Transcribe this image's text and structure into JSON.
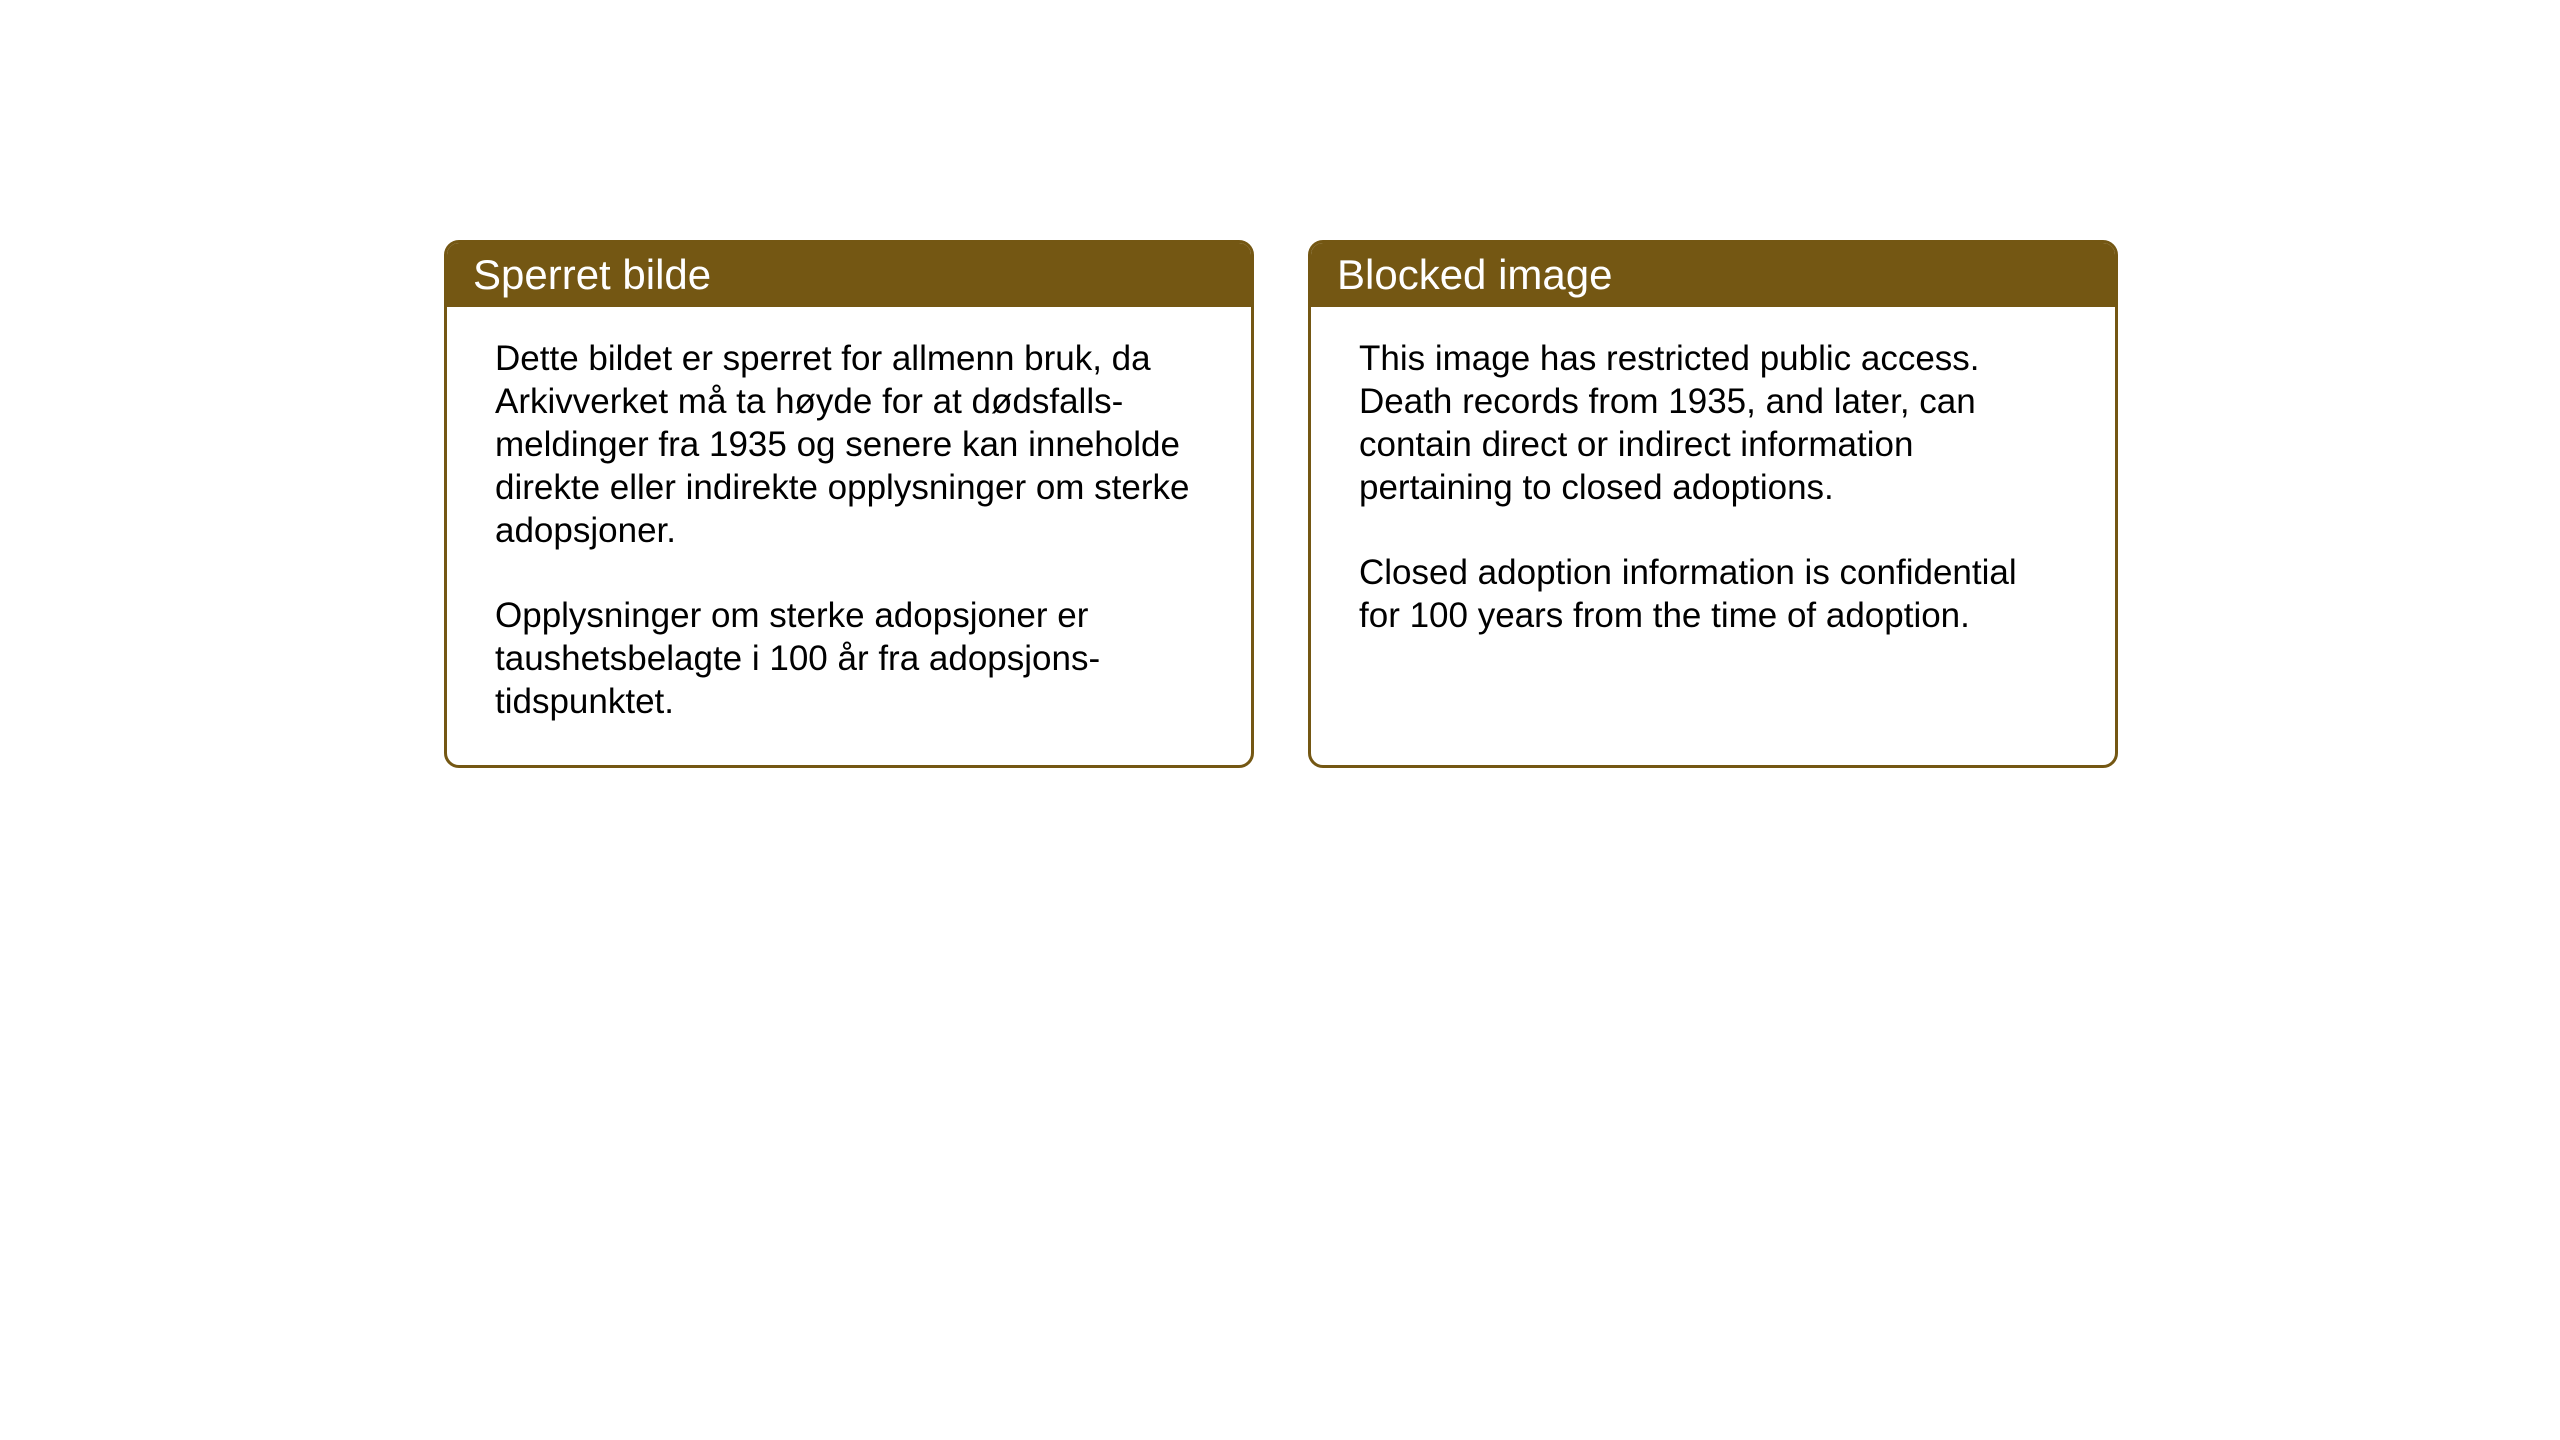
{
  "background_color": "#ffffff",
  "border_color": "#745713",
  "header_bg_color": "#745713",
  "header_text_color": "#ffffff",
  "body_text_color": "#000000",
  "header_fontsize": 42,
  "body_fontsize": 35,
  "cards": [
    {
      "title": "Sperret bilde",
      "paragraph1": "Dette bildet er sperret for allmenn bruk, da Arkivverket må ta høyde for at dødsfalls-meldinger fra 1935 og senere kan inneholde direkte eller indirekte opplysninger om sterke adopsjoner.",
      "paragraph2": "Opplysninger om sterke adopsjoner er taushetsbelagte i 100 år fra adopsjons-tidspunktet."
    },
    {
      "title": "Blocked image",
      "paragraph1": "This image has restricted public access. Death records from 1935, and later, can contain direct or indirect information pertaining to closed adoptions.",
      "paragraph2": "Closed adoption information is confidential for 100 years from the time of adoption."
    }
  ]
}
